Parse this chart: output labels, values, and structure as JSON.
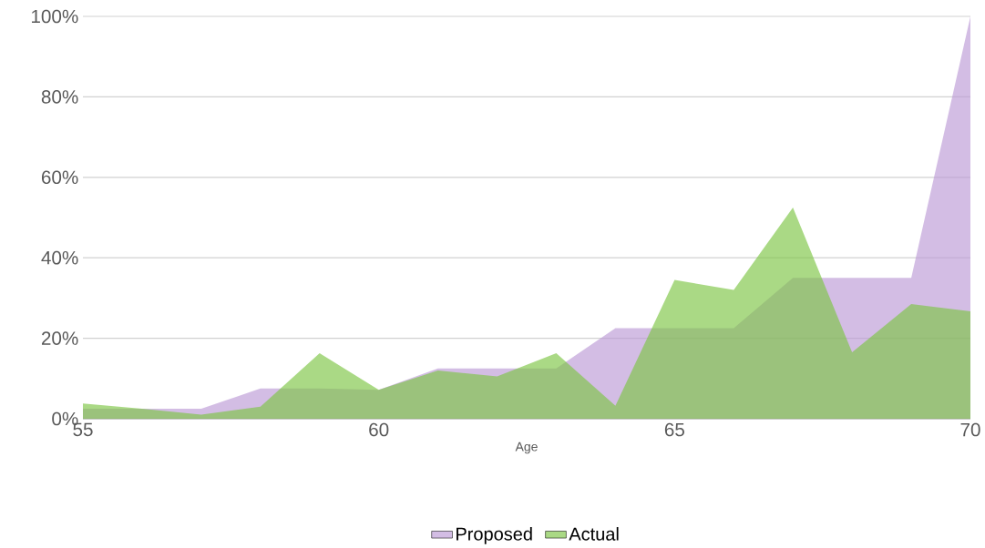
{
  "chart_data": {
    "type": "area",
    "xlabel": "Age",
    "x": [
      55,
      56,
      57,
      58,
      59,
      60,
      61,
      62,
      63,
      64,
      65,
      66,
      67,
      68,
      69,
      70
    ],
    "series": [
      {
        "name": "Actual",
        "color": "#7cc444",
        "values": [
          3.8,
          2.5,
          1,
          3,
          16.3,
          7.2,
          12,
          10.5,
          16.3,
          3.2,
          34.5,
          32,
          52.5,
          16.5,
          28.5,
          26.7
        ]
      },
      {
        "name": "Proposed",
        "color": "#bc9ad6",
        "values": [
          2.5,
          2.5,
          2.5,
          7.5,
          7.5,
          7.2,
          12.5,
          12.5,
          12.5,
          22.5,
          22.5,
          22.5,
          35,
          35,
          35,
          100
        ]
      }
    ],
    "xlim": [
      55,
      70
    ],
    "xticks": [
      55,
      60,
      65,
      70
    ],
    "ylim": [
      0,
      100
    ],
    "yticks": [
      {
        "value": 0,
        "label": "0%"
      },
      {
        "value": 20,
        "label": "20%"
      },
      {
        "value": 40,
        "label": "40%"
      },
      {
        "value": 60,
        "label": "60%"
      },
      {
        "value": 80,
        "label": "80%"
      },
      {
        "value": 100,
        "label": "100%"
      }
    ],
    "grid": "y",
    "legend": "bottom"
  }
}
